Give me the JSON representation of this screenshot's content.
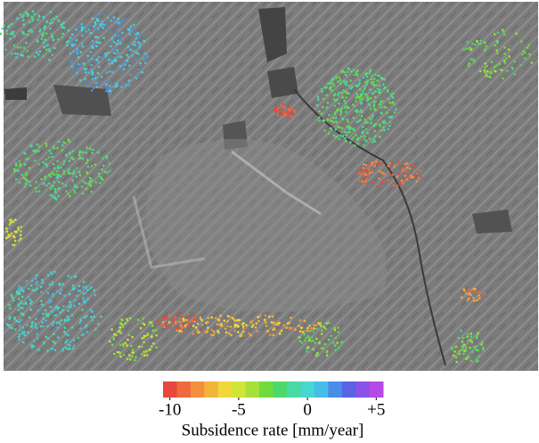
{
  "colorbar": {
    "colors": [
      "#e8463f",
      "#ef6a3c",
      "#f29040",
      "#f2b43a",
      "#f0d83a",
      "#d2e43a",
      "#a8e03a",
      "#6fdb3e",
      "#4dd86a",
      "#4ad8a4",
      "#48d6d0",
      "#48bde8",
      "#4a8ee8",
      "#5a62e6",
      "#8a52e6",
      "#b54ae6"
    ],
    "lim": [
      -10.5,
      5.5
    ],
    "ticks": [
      -10,
      -5,
      0,
      {
        "value": 5,
        "label": "+5"
      }
    ],
    "label": "Subsidence rate [mm/year]"
  }
}
